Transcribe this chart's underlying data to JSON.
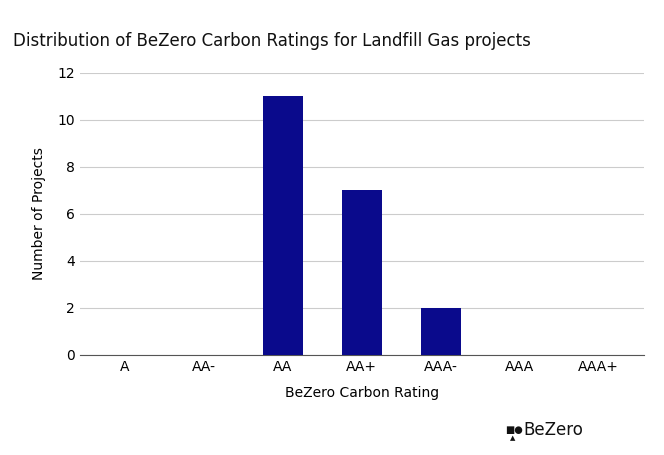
{
  "title": "Distribution of BeZero Carbon Ratings for Landfill Gas projects",
  "xlabel": "BeZero Carbon Rating",
  "ylabel": "Number of Projects",
  "categories": [
    "A",
    "AA-",
    "AA",
    "AA+",
    "AAA-",
    "AAA",
    "AAA+"
  ],
  "values": [
    0,
    0,
    11,
    7,
    2,
    0,
    0
  ],
  "bar_color": "#0a0a8c",
  "ylim": [
    0,
    12
  ],
  "yticks": [
    0,
    2,
    4,
    6,
    8,
    10,
    12
  ],
  "title_fontsize": 12,
  "axis_label_fontsize": 10,
  "tick_fontsize": 10,
  "background_color": "#ffffff",
  "grid_color": "#cccccc",
  "bezero_text": "BeZero",
  "bezero_fontsize": 12,
  "bar_width": 0.5
}
